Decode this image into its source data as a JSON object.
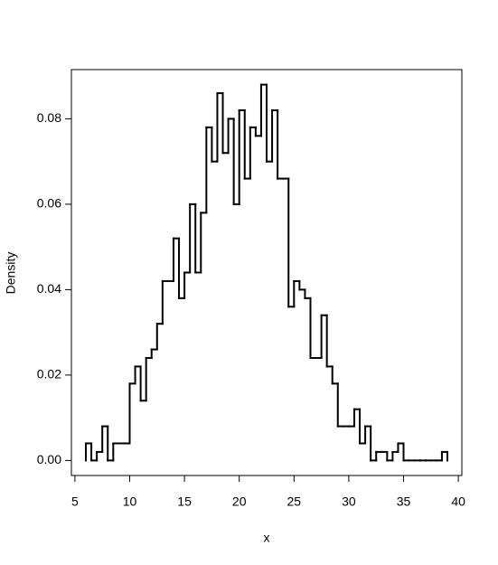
{
  "chart_data": {
    "type": "histogram",
    "x_label": "x",
    "y_label": "Density",
    "color": "#000000",
    "bins": [
      6,
      6.5,
      7,
      7.5,
      8,
      8.5,
      9,
      9.5,
      10,
      10.5,
      11,
      11.5,
      12,
      12.5,
      13,
      13.5,
      14,
      14.5,
      15,
      15.5,
      16,
      16.5,
      17,
      17.5,
      18,
      18.5,
      19,
      19.5,
      20,
      20.5,
      21,
      21.5,
      22,
      22.5,
      23,
      23.5,
      24,
      24.5,
      25,
      25.5,
      26,
      26.5,
      27,
      27.5,
      28,
      28.5,
      29,
      29.5,
      30,
      30.5,
      31,
      31.5,
      32,
      32.5,
      33,
      33.5,
      34,
      34.5,
      35,
      35.5,
      36,
      36.5,
      37,
      37.5,
      38,
      38.5,
      39
    ],
    "counts": [
      0.004,
      0,
      0.002,
      0.008,
      0,
      0.004,
      0.004,
      0.004,
      0.018,
      0.022,
      0.014,
      0.024,
      0.026,
      0.032,
      0.042,
      0.042,
      0.052,
      0.038,
      0.044,
      0.06,
      0.044,
      0.058,
      0.078,
      0.07,
      0.086,
      0.072,
      0.08,
      0.06,
      0.082,
      0.066,
      0.078,
      0.076,
      0.088,
      0.07,
      0.082,
      0.066,
      0.066,
      0.036,
      0.042,
      0.04,
      0.038,
      0.024,
      0.024,
      0.034,
      0.022,
      0.018,
      0.008,
      0.008,
      0.008,
      0.012,
      0.004,
      0.008,
      0,
      0.002,
      0.002,
      0,
      0.002,
      0.004,
      0,
      0,
      0,
      0,
      0,
      0,
      0,
      0.002
    ],
    "xlim": [
      4.68,
      40.32
    ],
    "ylim": [
      -0.00352,
      0.09152
    ],
    "xticks": [
      5,
      10,
      15,
      20,
      25,
      30,
      35,
      40
    ],
    "yticks": [
      {
        "value": 0,
        "label": "0.00"
      },
      0.02,
      0.04,
      0.06,
      0.08
    ]
  }
}
